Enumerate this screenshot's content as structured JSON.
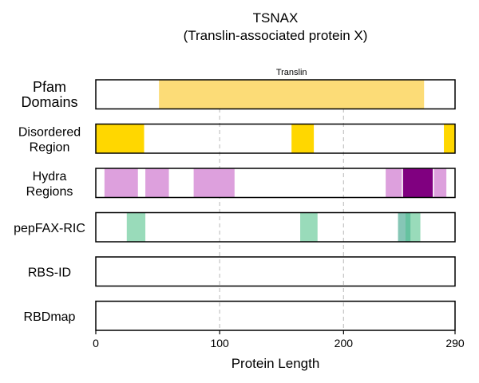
{
  "chart_data": {
    "type": "bar",
    "title": "TSNAX",
    "subtitle": "(Translin-associated protein X)",
    "xlabel": "Protein Length",
    "xlim": [
      0,
      290
    ],
    "xticks": [
      "0",
      "100",
      "200",
      "290"
    ],
    "grid_x": [
      100,
      200
    ],
    "tracks": [
      {
        "label": [
          "Pfam",
          "Domains"
        ],
        "segments": [
          {
            "start": 51,
            "end": 265,
            "color": "#FCDC77",
            "label": "Translin"
          }
        ]
      },
      {
        "label": [
          "Disordered",
          "Region"
        ],
        "segments": [
          {
            "start": 0,
            "end": 39,
            "color": "#FFD700"
          },
          {
            "start": 158,
            "end": 176,
            "color": "#FFD700"
          },
          {
            "start": 281,
            "end": 290,
            "color": "#FFD700"
          }
        ]
      },
      {
        "label": [
          "Hydra",
          "Regions"
        ],
        "segments": [
          {
            "start": 7,
            "end": 34,
            "color": "#DDA0DD"
          },
          {
            "start": 40,
            "end": 59,
            "color": "#DDA0DD"
          },
          {
            "start": 79,
            "end": 112,
            "color": "#DDA0DD"
          },
          {
            "start": 234,
            "end": 247,
            "color": "#DDA0DD"
          },
          {
            "start": 248,
            "end": 272,
            "color": "#800080"
          },
          {
            "start": 273,
            "end": 283,
            "color": "#DDA0DD"
          }
        ]
      },
      {
        "label": [
          "pepFAX-RIC"
        ],
        "segments": [
          {
            "start": 25,
            "end": 40,
            "color": "#99DBBA"
          },
          {
            "start": 165,
            "end": 179,
            "color": "#99DBBA"
          },
          {
            "start": 244,
            "end": 262,
            "color": "#99DBBA"
          },
          {
            "start": 244,
            "end": 250,
            "color": "#86C6B6"
          },
          {
            "start": 250,
            "end": 254,
            "color": "#66C2A0"
          }
        ]
      },
      {
        "label": [
          "RBS-ID"
        ],
        "segments": []
      },
      {
        "label": [
          "RBDmap"
        ],
        "segments": []
      }
    ]
  }
}
